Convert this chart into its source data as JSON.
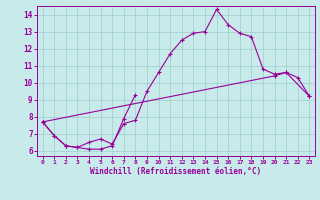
{
  "xlabel": "Windchill (Refroidissement éolien,°C)",
  "bg_color": "#c8eaea",
  "line_color": "#990099",
  "xlim": [
    -0.5,
    23.5
  ],
  "ylim": [
    5.7,
    14.5
  ],
  "xticks": [
    0,
    1,
    2,
    3,
    4,
    5,
    6,
    7,
    8,
    9,
    10,
    11,
    12,
    13,
    14,
    15,
    16,
    17,
    18,
    19,
    20,
    21,
    22,
    23
  ],
  "yticks": [
    6,
    7,
    8,
    9,
    10,
    11,
    12,
    13,
    14
  ],
  "line1_y": [
    7.7,
    6.9,
    6.3,
    6.2,
    6.5,
    6.7,
    6.4,
    7.6,
    7.8,
    9.5,
    10.6,
    11.7,
    12.5,
    12.9,
    13.0,
    14.3,
    13.4,
    12.9,
    12.7,
    10.8,
    10.5,
    10.6,
    null,
    9.2
  ],
  "line2_y": [
    7.7,
    6.9,
    6.3,
    6.2,
    6.1,
    6.1,
    6.3,
    7.9,
    9.3,
    null,
    null,
    null,
    null,
    null,
    null,
    null,
    null,
    null,
    null,
    null,
    null,
    null,
    null,
    null
  ],
  "line3_y": [
    7.7,
    null,
    null,
    null,
    null,
    null,
    null,
    null,
    null,
    null,
    null,
    null,
    null,
    null,
    null,
    null,
    null,
    null,
    null,
    null,
    10.4,
    10.6,
    10.3,
    9.2
  ],
  "grid_color": "#9dcece"
}
